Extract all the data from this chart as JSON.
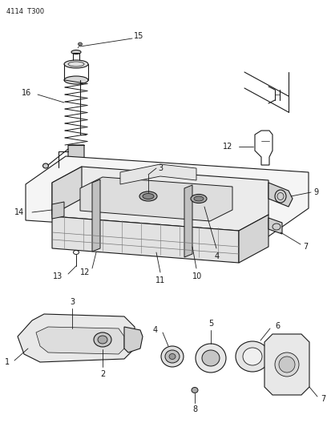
{
  "bg_color": "#ffffff",
  "line_color": "#1a1a1a",
  "note_code": "4114  T300",
  "fig_width": 4.08,
  "fig_height": 5.33,
  "dpi": 100
}
